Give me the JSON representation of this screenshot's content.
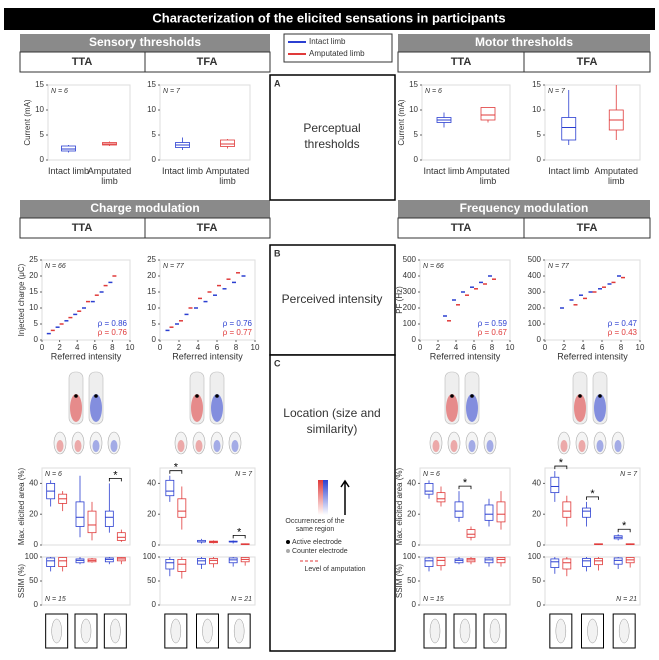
{
  "title": "Characterization of the elicited sensations in participants",
  "legend": [
    {
      "name": "Intact limb",
      "color": "#2b3fd1"
    },
    {
      "name": "Amputated limb",
      "color": "#e03a3a"
    }
  ],
  "sections": {
    "sensory": "Sensory thresholds",
    "motor": "Motor thresholds",
    "charge": "Charge modulation",
    "frequency": "Frequency modulation"
  },
  "groups": [
    "TTA",
    "TFA"
  ],
  "center": {
    "A": {
      "letter": "A",
      "label": "Perceptual thresholds"
    },
    "B": {
      "letter": "B",
      "label": "Perceived intensity"
    },
    "C": {
      "letter": "C",
      "label": "Location (size and similarity)"
    }
  },
  "location_legend": {
    "scale": "Occurrences of the same region",
    "active": "Active electrode",
    "counter": "Counter electrode",
    "amputation": "Level of amputation"
  },
  "thresholds": [
    {
      "n_label": "N = 6",
      "ylabel": "Current (mA)",
      "ylim": [
        0,
        15
      ],
      "yticks": [
        0,
        5,
        10,
        15
      ],
      "categories": [
        "Intact limb",
        "Amputated limb"
      ],
      "boxes": [
        [
          1.5,
          1.8,
          2.2,
          2.8,
          3
        ],
        [
          2.8,
          3,
          3.2,
          3.5,
          3.7
        ]
      ]
    },
    {
      "n_label": "N = 7",
      "ylim": [
        0,
        15
      ],
      "yticks": [
        0,
        5,
        10,
        15
      ],
      "categories": [
        "Intact limb",
        "Amputated limb"
      ],
      "boxes": [
        [
          2,
          2.5,
          3,
          3.5,
          4.5
        ],
        [
          2.3,
          2.7,
          3.2,
          4,
          4.2
        ]
      ]
    },
    {
      "n_label": "N = 6",
      "ylabel": "Current (mA)",
      "ylim": [
        0,
        15
      ],
      "yticks": [
        0,
        5,
        10,
        15
      ],
      "categories": [
        "Intact limb",
        "Amputated limb"
      ],
      "boxes": [
        [
          6.5,
          7.5,
          8,
          8.5,
          9.5
        ],
        [
          7.5,
          8,
          9,
          10.5,
          10.5
        ]
      ]
    },
    {
      "n_label": "N = 7",
      "ylim": [
        0,
        15
      ],
      "yticks": [
        0,
        5,
        10,
        15
      ],
      "categories": [
        "Intact limb",
        "Amputated limb"
      ],
      "boxes": [
        [
          3,
          4,
          6.5,
          8.5,
          14
        ],
        [
          4,
          6,
          8,
          10,
          15
        ]
      ]
    }
  ],
  "intensity": [
    {
      "n_label": "N = 66",
      "ylabel": "Injected charge (μC)",
      "xlabel": "Referred intensity",
      "xlim": [
        0,
        10
      ],
      "xticks": [
        0,
        2,
        4,
        6,
        8,
        10
      ],
      "ylim": [
        0,
        25
      ],
      "yticks": [
        0,
        5,
        10,
        15,
        20,
        25
      ],
      "series": [
        {
          "x": [
            1,
            2,
            3,
            4,
            5,
            6,
            7,
            8
          ],
          "values": [
            2,
            4,
            6,
            8,
            10,
            12,
            15,
            18
          ]
        },
        {
          "x": [
            1,
            2,
            3,
            4,
            5,
            6,
            7,
            8
          ],
          "values": [
            3,
            5,
            7,
            9,
            12,
            14,
            17,
            20
          ]
        }
      ],
      "rho": [
        0.86,
        0.76
      ],
      "rho_labels": [
        "ρ = 0.86",
        "ρ = 0.76"
      ]
    },
    {
      "n_label": "N = 77",
      "xlabel": "Referred intensity",
      "xlim": [
        0,
        10
      ],
      "xticks": [
        0,
        2,
        4,
        6,
        8,
        10
      ],
      "ylim": [
        0,
        25
      ],
      "yticks": [
        0,
        5,
        10,
        15,
        20,
        25
      ],
      "series": [
        {
          "x": [
            1,
            2,
            3,
            4,
            5,
            6,
            7,
            8,
            9
          ],
          "values": [
            3,
            5,
            8,
            10,
            12,
            14,
            16,
            18,
            20
          ]
        },
        {
          "x": [
            1,
            2,
            3,
            4,
            5,
            6,
            7,
            8
          ],
          "values": [
            4,
            6,
            10,
            13,
            15,
            17,
            19,
            21
          ]
        }
      ],
      "rho": [
        0.76,
        0.77
      ],
      "rho_labels": [
        "ρ = 0.76",
        "ρ = 0.77"
      ]
    },
    {
      "n_label": "N = 66",
      "ylabel": "PF (Hz)",
      "xlabel": "Referred intensity",
      "xlim": [
        0,
        10
      ],
      "xticks": [
        0,
        2,
        4,
        6,
        8,
        10
      ],
      "ylim": [
        0,
        500
      ],
      "yticks": [
        0,
        100,
        200,
        300,
        400,
        500
      ],
      "series": [
        {
          "x": [
            3,
            4,
            5,
            6,
            7,
            8
          ],
          "values": [
            150,
            250,
            300,
            330,
            360,
            400
          ]
        },
        {
          "x": [
            3,
            4,
            5,
            6,
            7,
            8
          ],
          "values": [
            120,
            220,
            280,
            320,
            350,
            380
          ]
        }
      ],
      "rho": [
        0.59,
        0.67
      ],
      "rho_labels": [
        "ρ = 0.59",
        "ρ = 0.67"
      ]
    },
    {
      "n_label": "N = 77",
      "xlabel": "Referred intensity",
      "xlim": [
        0,
        10
      ],
      "xticks": [
        0,
        2,
        4,
        6,
        8,
        10
      ],
      "ylim": [
        0,
        500
      ],
      "yticks": [
        0,
        100,
        200,
        300,
        400,
        500
      ],
      "series": [
        {
          "x": [
            2,
            3,
            4,
            5,
            6,
            7,
            8
          ],
          "values": [
            200,
            250,
            280,
            300,
            320,
            350,
            400
          ]
        },
        {
          "x": [
            3,
            4,
            5,
            6,
            7,
            8
          ],
          "values": [
            220,
            260,
            300,
            330,
            360,
            390
          ]
        }
      ],
      "rho": [
        0.47,
        0.43
      ],
      "rho_labels": [
        "ρ = 0.47",
        "ρ = 0.43"
      ]
    }
  ],
  "area": [
    {
      "n_label": "N = 6",
      "ylabel": "Max. elicited area (%)",
      "ylim": [
        0,
        50
      ],
      "yticks": [
        0,
        20,
        40
      ],
      "boxes": [
        [
          [
            25,
            30,
            35,
            40,
            42
          ],
          [
            5,
            12,
            18,
            28,
            45
          ],
          [
            8,
            12,
            18,
            22,
            40
          ]
        ],
        [
          [
            22,
            27,
            30,
            33,
            35
          ],
          [
            3,
            8,
            13,
            22,
            28
          ],
          [
            2,
            3,
            5,
            8,
            10
          ]
        ]
      ],
      "significance": [
        null,
        null,
        "*"
      ]
    },
    {
      "n_label": "N = 7",
      "ylim": [
        0,
        50
      ],
      "yticks": [
        0,
        20,
        40
      ],
      "boxes": [
        [
          [
            28,
            32,
            35,
            42,
            45
          ],
          [
            1,
            2,
            2,
            3,
            4
          ],
          [
            1,
            2,
            2,
            2.5,
            3
          ]
        ],
        [
          [
            10,
            18,
            22,
            30,
            38
          ],
          [
            1,
            1.5,
            2,
            2.5,
            3
          ],
          [
            0,
            0.3,
            0.5,
            0.8,
            1
          ]
        ]
      ],
      "significance": [
        "*",
        null,
        "*"
      ]
    },
    {
      "n_label": "N = 6",
      "ylabel": "Max. elicited area (%)",
      "ylim": [
        0,
        50
      ],
      "yticks": [
        0,
        20,
        40
      ],
      "boxes": [
        [
          [
            30,
            33,
            35,
            40,
            42
          ],
          [
            15,
            18,
            22,
            28,
            35
          ],
          [
            12,
            16,
            20,
            26,
            30
          ]
        ],
        [
          [
            25,
            28,
            30,
            34,
            38
          ],
          [
            3,
            5,
            7,
            10,
            12
          ],
          [
            10,
            15,
            20,
            28,
            35
          ]
        ]
      ],
      "significance": [
        null,
        "*",
        null
      ]
    },
    {
      "n_label": "N = 7",
      "ylim": [
        0,
        50
      ],
      "yticks": [
        0,
        20,
        40
      ],
      "boxes": [
        [
          [
            28,
            34,
            38,
            44,
            48
          ],
          [
            12,
            18,
            22,
            24,
            28
          ],
          [
            3,
            4,
            5,
            6,
            7
          ]
        ],
        [
          [
            12,
            18,
            22,
            28,
            32
          ],
          [
            0,
            0.3,
            0.5,
            0.8,
            1
          ],
          [
            0,
            0.3,
            0.5,
            0.8,
            1
          ]
        ]
      ],
      "significance": [
        "*",
        "*",
        "*"
      ]
    }
  ],
  "ssim": [
    {
      "n_label": "N = 15",
      "ylabel": "SSIM (%)",
      "ylim": [
        0,
        100
      ],
      "yticks": [
        0,
        50,
        100
      ],
      "boxes": [
        [
          [
            70,
            80,
            92,
            98,
            100
          ],
          [
            85,
            88,
            93,
            96,
            100
          ],
          [
            85,
            90,
            95,
            98,
            100
          ]
        ],
        [
          [
            70,
            80,
            92,
            99,
            100
          ],
          [
            88,
            90,
            93,
            96,
            98
          ],
          [
            85,
            92,
            96,
            99,
            100
          ]
        ]
      ]
    },
    {
      "n_label": "N = 21",
      "ylim": [
        0,
        100
      ],
      "yticks": [
        0,
        50,
        100
      ],
      "boxes": [
        [
          [
            60,
            75,
            88,
            95,
            100
          ],
          [
            75,
            85,
            92,
            97,
            100
          ],
          [
            80,
            88,
            94,
            98,
            100
          ]
        ],
        [
          [
            55,
            70,
            85,
            95,
            100
          ],
          [
            78,
            86,
            93,
            97,
            100
          ],
          [
            82,
            90,
            95,
            99,
            100
          ]
        ]
      ]
    },
    {
      "n_label": "N = 15",
      "ylabel": "SSIM (%)",
      "ylim": [
        0,
        100
      ],
      "yticks": [
        0,
        50,
        100
      ],
      "boxes": [
        [
          [
            70,
            80,
            92,
            98,
            100
          ],
          [
            85,
            88,
            93,
            96,
            100
          ],
          [
            80,
            88,
            94,
            98,
            100
          ]
        ],
        [
          [
            72,
            82,
            93,
            99,
            100
          ],
          [
            85,
            90,
            94,
            97,
            100
          ],
          [
            80,
            88,
            95,
            99,
            100
          ]
        ]
      ]
    },
    {
      "n_label": "N = 21",
      "ylim": [
        0,
        100
      ],
      "yticks": [
        0,
        50,
        100
      ],
      "boxes": [
        [
          [
            65,
            78,
            90,
            96,
            100
          ],
          [
            70,
            80,
            92,
            97,
            100
          ],
          [
            75,
            85,
            93,
            98,
            100
          ]
        ],
        [
          [
            60,
            75,
            88,
            96,
            100
          ],
          [
            72,
            84,
            92,
            97,
            100
          ],
          [
            78,
            88,
            94,
            99,
            100
          ]
        ]
      ]
    }
  ]
}
